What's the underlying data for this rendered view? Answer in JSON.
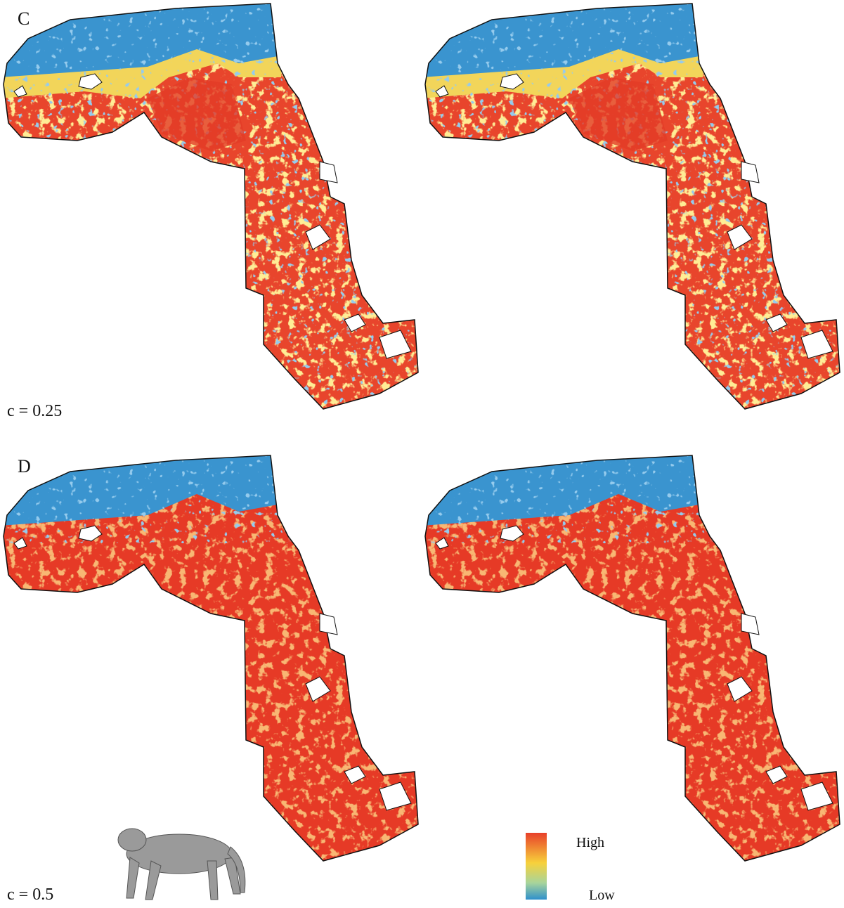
{
  "panels": [
    {
      "label": "C",
      "parameter": "c = 0.25"
    },
    {
      "label": "D",
      "parameter": "c = 0.5"
    }
  ],
  "legend": {
    "high": "High",
    "low": "Low"
  }
}
